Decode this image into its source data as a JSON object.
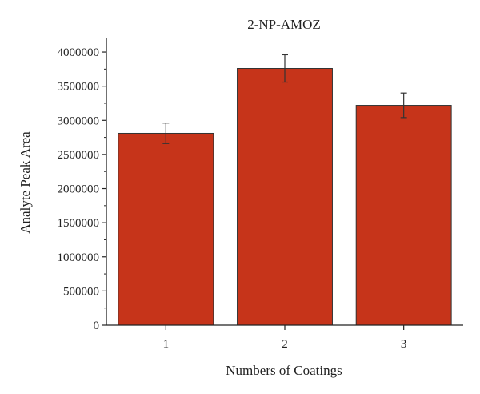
{
  "chart_data": {
    "type": "bar",
    "title": "2-NP-AMOZ",
    "xlabel": "Numbers of Coatings",
    "ylabel": "Analyte Peak Area",
    "categories": [
      "1",
      "2",
      "3"
    ],
    "values": [
      2810000,
      3760000,
      3220000
    ],
    "errors": [
      150000,
      200000,
      180000
    ],
    "ylim": [
      0,
      4200000
    ],
    "yticks": [
      0,
      500000,
      1000000,
      1500000,
      2000000,
      2500000,
      3000000,
      3500000,
      4000000
    ],
    "ytick_labels": [
      "0",
      "500000",
      "1000000",
      "1500000",
      "2000000",
      "2500000",
      "3000000",
      "3500000",
      "4000000"
    ],
    "bar_color": "#c6341a",
    "grid": false,
    "legend": "none"
  }
}
